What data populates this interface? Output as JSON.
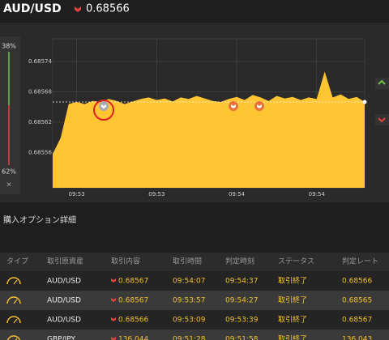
{
  "header": {
    "pair": "AUD/USD",
    "price": "0.68566"
  },
  "sidebar": {
    "up": "38%",
    "down": "62%",
    "close": "×"
  },
  "chart_data": {
    "type": "area",
    "categories": [
      null,
      null,
      null,
      "09:53",
      null,
      null,
      null,
      null,
      null,
      null,
      null,
      null,
      null,
      "09:53",
      null,
      null,
      null,
      null,
      null,
      null,
      null,
      null,
      null,
      "09:54",
      null,
      null,
      null,
      null,
      null,
      null,
      null,
      null,
      null,
      "09:54",
      null,
      null,
      null,
      null,
      null,
      null
    ],
    "values": [
      0.685557,
      0.685589,
      0.685656,
      0.68566,
      0.685656,
      0.685662,
      0.68566,
      0.685666,
      0.685662,
      0.685656,
      0.685661,
      0.685666,
      0.685669,
      0.685664,
      0.685667,
      0.685661,
      0.685669,
      0.685666,
      0.685672,
      0.685667,
      0.685662,
      0.68566,
      0.685666,
      0.68567,
      0.685664,
      0.685674,
      0.685669,
      0.685662,
      0.685672,
      0.685667,
      0.68567,
      0.685664,
      0.685669,
      0.685666,
      0.68572,
      0.685669,
      0.685675,
      0.685666,
      0.68567,
      0.68566
    ],
    "color": "#ffc533",
    "ylim": [
      0.68549,
      0.685785
    ],
    "yticks": [
      0.68556,
      0.68562,
      0.68568,
      0.68574
    ],
    "price_line": 0.68566,
    "grid": true
  },
  "table": {
    "title": "購入オプション詳細",
    "columns": [
      "タイプ",
      "取引原資産",
      "取引内容",
      "取引時間",
      "判定時刻",
      "ステータス",
      "判定レート"
    ],
    "rows": [
      [
        "AUD/USD",
        "0.68567",
        "09:54:07",
        "09:54:37",
        "取引終了",
        "0.68566"
      ],
      [
        "AUD/USD",
        "0.68567",
        "09:53:57",
        "09:54:27",
        "取引終了",
        "0.68565"
      ],
      [
        "AUD/USD",
        "0.68566",
        "09:53:09",
        "09:53:39",
        "取引終了",
        "0.68567"
      ],
      [
        "GBP/JPY",
        "136.044",
        "09:51:28",
        "09:51:58",
        "取引終了",
        "136.043"
      ]
    ]
  }
}
